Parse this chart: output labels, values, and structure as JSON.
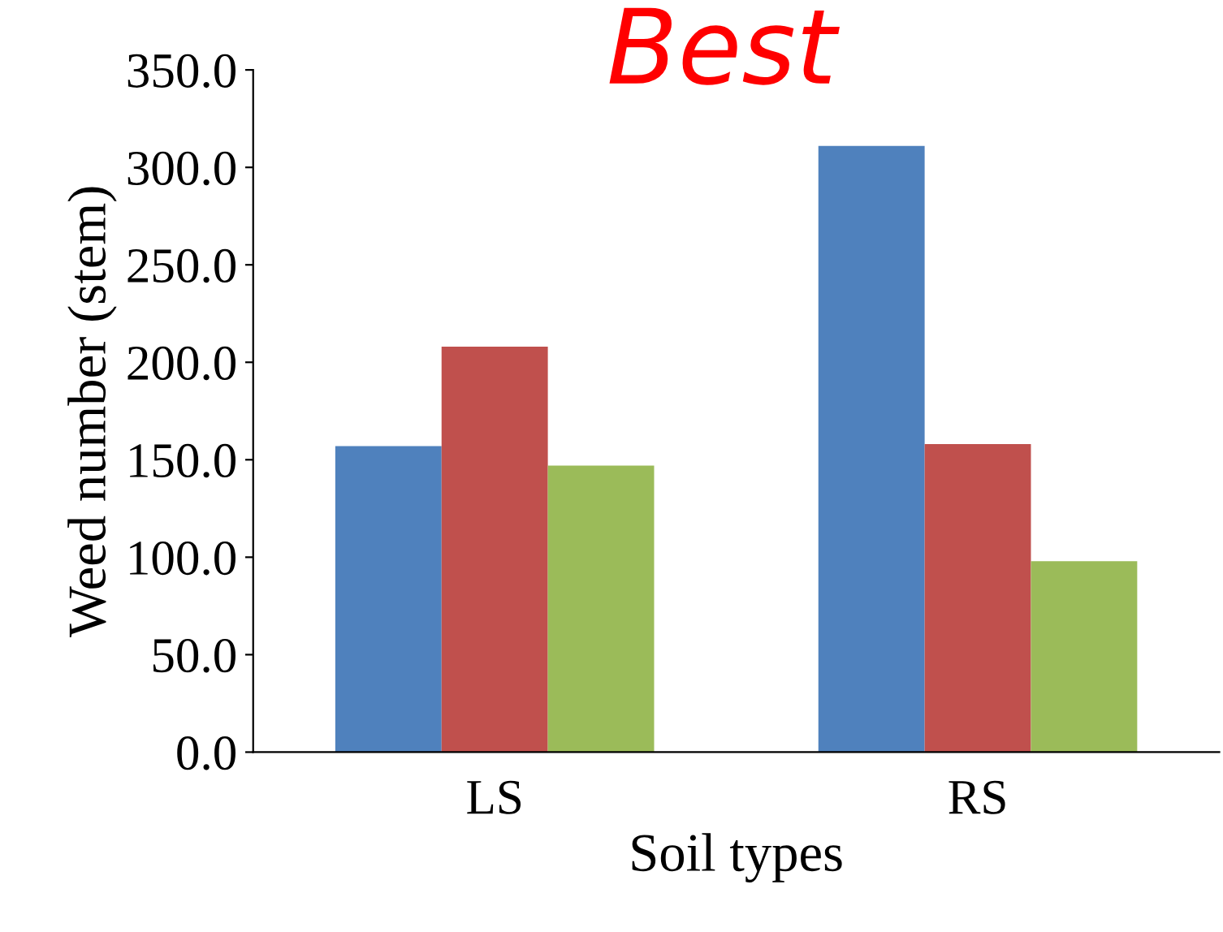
{
  "chart_data": {
    "type": "bar",
    "title": "Best",
    "xlabel": "Soil types",
    "ylabel": "Weed number (stem)",
    "categories": [
      "LS",
      "RS"
    ],
    "series": [
      {
        "color": "#4f81bd",
        "values": [
          157,
          311
        ]
      },
      {
        "color": "#c0504d",
        "values": [
          208,
          158
        ]
      },
      {
        "color": "#9bbb59",
        "values": [
          147,
          98
        ]
      }
    ],
    "ylim": [
      0,
      350
    ],
    "yticks": [
      {
        "value": 0,
        "label": "0.0"
      },
      {
        "value": 50,
        "label": "50.0"
      },
      {
        "value": 100,
        "label": "100.0"
      },
      {
        "value": 150,
        "label": "150.0"
      },
      {
        "value": 200,
        "label": "200.0"
      },
      {
        "value": 250,
        "label": "250.0"
      },
      {
        "value": 300,
        "label": "300.0"
      },
      {
        "value": 350,
        "label": "350.0"
      }
    ],
    "grid": false,
    "legend": false
  }
}
